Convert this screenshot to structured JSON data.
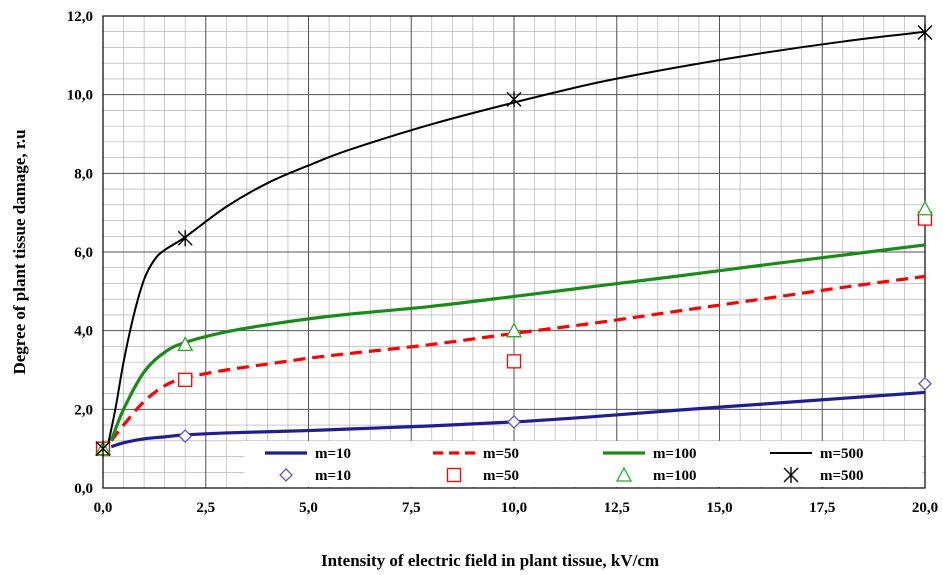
{
  "chart_data": {
    "type": "line",
    "xlabel": "Intensity of electric field in plant tissue, kV/cm",
    "ylabel": "Degree of plant tissue damage, r.u",
    "xlim": [
      0,
      20
    ],
    "ylim": [
      0,
      12
    ],
    "x_ticks": [
      "0,0",
      "2,5",
      "5,0",
      "7,5",
      "10,0",
      "12,5",
      "15,0",
      "17,5",
      "20,0"
    ],
    "y_ticks": [
      "0,0",
      "2,0",
      "4,0",
      "6,0",
      "8,0",
      "10,0",
      "12,0"
    ],
    "grid": true,
    "legend_position": "bottom-right",
    "curves": [
      {
        "name": "m=10",
        "color": "#1f1f8f",
        "style": "solid",
        "x": [
          0.2,
          0.5,
          1,
          1.5,
          2,
          3,
          4,
          5,
          6,
          8,
          10,
          12,
          14,
          16,
          18,
          20
        ],
        "y": [
          1.05,
          1.15,
          1.25,
          1.3,
          1.35,
          1.4,
          1.43,
          1.46,
          1.5,
          1.58,
          1.68,
          1.82,
          1.98,
          2.13,
          2.28,
          2.43
        ]
      },
      {
        "name": "m=50",
        "color": "#ff0000",
        "style": "dashed",
        "x": [
          0.2,
          0.5,
          1,
          1.5,
          2,
          3,
          4,
          5,
          6,
          8,
          10,
          12,
          14,
          16,
          18,
          20
        ],
        "y": [
          1.2,
          1.6,
          2.2,
          2.6,
          2.8,
          3.0,
          3.15,
          3.3,
          3.42,
          3.65,
          3.93,
          4.2,
          4.5,
          4.8,
          5.1,
          5.38
        ]
      },
      {
        "name": "m=100",
        "color": "#1a8a1a",
        "style": "solid",
        "x": [
          0.2,
          0.5,
          1,
          1.5,
          2,
          3,
          4,
          5,
          6,
          8,
          10,
          12,
          14,
          16,
          18,
          20
        ],
        "y": [
          1.2,
          2.0,
          2.95,
          3.45,
          3.7,
          3.97,
          4.15,
          4.3,
          4.42,
          4.62,
          4.87,
          5.13,
          5.39,
          5.66,
          5.92,
          6.18
        ]
      },
      {
        "name": "m=500",
        "color": "#000000",
        "style": "solid",
        "x": [
          0.1,
          0.3,
          0.5,
          0.75,
          1,
          1.25,
          1.5,
          2,
          3,
          4,
          5,
          6,
          8,
          10,
          12,
          14,
          16,
          18,
          20
        ],
        "y": [
          1.0,
          2.0,
          3.2,
          4.4,
          5.3,
          5.8,
          6.05,
          6.38,
          7.15,
          7.75,
          8.2,
          8.6,
          9.25,
          9.8,
          10.3,
          10.7,
          11.05,
          11.35,
          11.6
        ]
      }
    ],
    "points": [
      {
        "name": "m=10",
        "marker": "diamond",
        "color": "#5a5aa8",
        "x": [
          0,
          2,
          10,
          20
        ],
        "y": [
          1.0,
          1.32,
          1.68,
          2.65
        ]
      },
      {
        "name": "m=50",
        "marker": "square",
        "color": "#ff0000",
        "x": [
          0,
          2,
          10,
          20
        ],
        "y": [
          1.0,
          2.75,
          3.22,
          6.85
        ]
      },
      {
        "name": "m=100",
        "marker": "triangle",
        "color": "#2aa82a",
        "x": [
          0,
          2,
          10,
          20
        ],
        "y": [
          1.0,
          3.65,
          4.0,
          7.1
        ]
      },
      {
        "name": "m=500",
        "marker": "asterisk",
        "color": "#000000",
        "x": [
          0,
          2,
          10,
          20
        ],
        "y": [
          1.0,
          6.35,
          9.88,
          11.58
        ]
      }
    ]
  }
}
